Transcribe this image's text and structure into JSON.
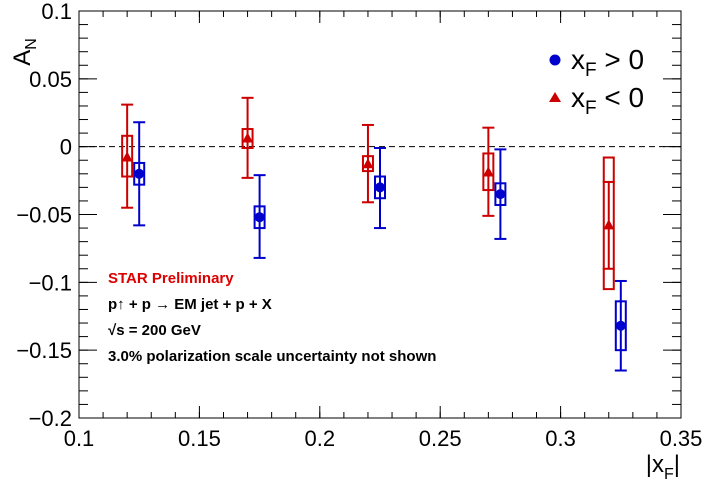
{
  "chart_data": {
    "type": "scatter",
    "title": "",
    "xlabel": "|x_F|",
    "ylabel": "A_N",
    "xlim": [
      0.1,
      0.35
    ],
    "ylim": [
      -0.2,
      0.1
    ],
    "xticks": [
      0.1,
      0.15,
      0.2,
      0.25,
      0.3,
      0.35
    ],
    "xtick_labels": [
      "0.1",
      "0.15",
      "0.2",
      "0.25",
      "0.3",
      "0.35"
    ],
    "yticks": [
      -0.2,
      -0.15,
      -0.1,
      -0.05,
      0,
      0.05,
      0.1
    ],
    "ytick_labels": [
      "−0.2",
      "−0.15",
      "−0.1",
      "−0.05",
      "0",
      "0.05",
      "0.1"
    ],
    "reference_line_y": 0,
    "grid": false,
    "legend_position": "top-right",
    "series": [
      {
        "name": "x_F > 0",
        "color": "#0000cc",
        "marker": "circle",
        "points": [
          {
            "x": 0.125,
            "y": -0.02,
            "stat_lo": -0.058,
            "stat_hi": 0.018,
            "sys_lo": -0.028,
            "sys_hi": -0.012
          },
          {
            "x": 0.175,
            "y": -0.052,
            "stat_lo": -0.082,
            "stat_hi": -0.021,
            "sys_lo": -0.06,
            "sys_hi": -0.044
          },
          {
            "x": 0.225,
            "y": -0.03,
            "stat_lo": -0.06,
            "stat_hi": -0.001,
            "sys_lo": -0.038,
            "sys_hi": -0.022
          },
          {
            "x": 0.275,
            "y": -0.035,
            "stat_lo": -0.068,
            "stat_hi": -0.002,
            "sys_lo": -0.043,
            "sys_hi": -0.027
          },
          {
            "x": 0.325,
            "y": -0.132,
            "stat_lo": -0.165,
            "stat_hi": -0.099,
            "sys_lo": -0.15,
            "sys_hi": -0.114
          }
        ]
      },
      {
        "name": "x_F < 0",
        "color": "#cc0000",
        "marker": "triangle",
        "points": [
          {
            "x": 0.12,
            "y": -0.008,
            "stat_lo": -0.045,
            "stat_hi": 0.031,
            "sys_lo": -0.022,
            "sys_hi": 0.008
          },
          {
            "x": 0.17,
            "y": 0.006,
            "stat_lo": -0.023,
            "stat_hi": 0.036,
            "sys_lo": -0.001,
            "sys_hi": 0.013
          },
          {
            "x": 0.22,
            "y": -0.013,
            "stat_lo": -0.041,
            "stat_hi": 0.016,
            "sys_lo": -0.018,
            "sys_hi": -0.007
          },
          {
            "x": 0.27,
            "y": -0.019,
            "stat_lo": -0.051,
            "stat_hi": 0.014,
            "sys_lo": -0.032,
            "sys_hi": -0.005
          },
          {
            "x": 0.32,
            "y": -0.058,
            "stat_lo": -0.09,
            "stat_hi": -0.026,
            "sys_lo": -0.105,
            "sys_hi": -0.008
          }
        ]
      }
    ],
    "annotations": [
      {
        "text": "STAR Preliminary",
        "color": "#dd0000"
      },
      {
        "text": "p↑ + p → EM jet + p + X",
        "color": "#000000"
      },
      {
        "text": "√s = 200 GeV",
        "color": "#000000"
      },
      {
        "text": "3.0% polarization scale uncertainty not shown",
        "color": "#000000"
      }
    ]
  }
}
